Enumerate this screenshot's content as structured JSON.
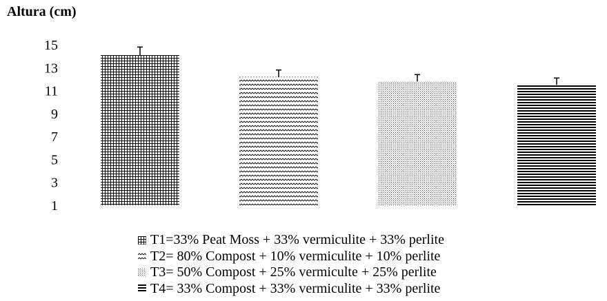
{
  "chart_data": {
    "type": "bar",
    "ylabel": "Altura (cm)",
    "xlabel": "",
    "ylim": [
      1,
      15
    ],
    "yticks": [
      1,
      3,
      5,
      7,
      9,
      11,
      13,
      15
    ],
    "categories": [
      "T1",
      "T2",
      "T3",
      "T4"
    ],
    "values": [
      14.1,
      12.2,
      11.8,
      11.5
    ],
    "errors": [
      0.7,
      0.6,
      0.6,
      0.6
    ],
    "patterns": [
      "grid",
      "zigzag",
      "dots",
      "hlines"
    ],
    "legend": [
      "T1=33% Peat Moss + 33% vermiculite + 33% perlite",
      "T2= 80% Compost + 10% vermiculite + 10% perlite",
      "T3= 50% Compost + 25% vermiculte  +  25% perlite",
      "T4= 33% Compost + 33% vermiculite + 33% perlite"
    ],
    "legend_position": "bottom",
    "grid": false
  }
}
